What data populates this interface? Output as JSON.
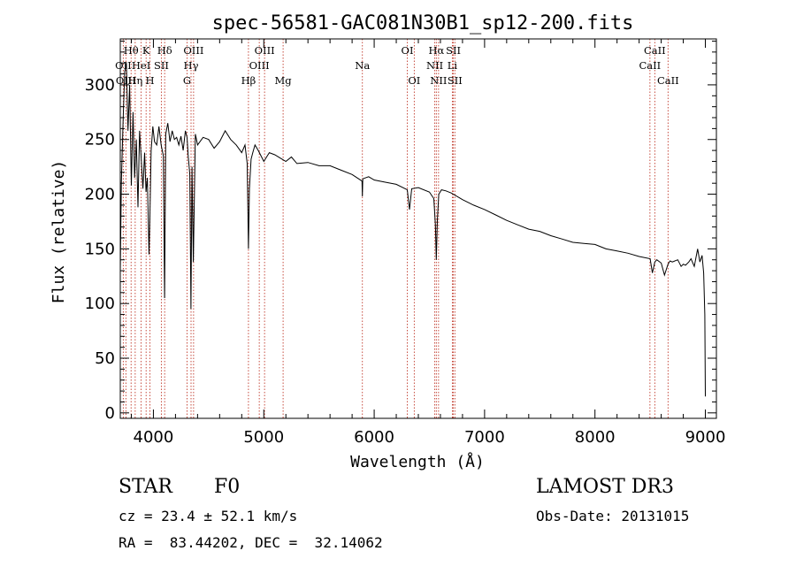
{
  "chart_data": {
    "type": "line",
    "title": "spec-56581-GAC081N30B1_sp12-200.fits",
    "xlabel": "Wavelength (Å)",
    "ylabel": "Flux (relative)",
    "xlim": [
      3700,
      9100
    ],
    "ylim": [
      -5,
      342
    ],
    "xticks": [
      4000,
      5000,
      6000,
      7000,
      8000,
      9000
    ],
    "yticks": [
      0,
      50,
      100,
      150,
      200,
      250,
      300
    ],
    "spectrum": {
      "name": "flux",
      "x": [
        3700,
        3710,
        3725,
        3740,
        3755,
        3770,
        3785,
        3800,
        3815,
        3830,
        3845,
        3860,
        3875,
        3890,
        3905,
        3920,
        3933,
        3945,
        3960,
        3968,
        3980,
        3995,
        4010,
        4030,
        4050,
        4070,
        4090,
        4101,
        4112,
        4130,
        4150,
        4170,
        4190,
        4210,
        4230,
        4250,
        4270,
        4290,
        4305,
        4315,
        4330,
        4340,
        4350,
        4362,
        4380,
        4400,
        4450,
        4500,
        4550,
        4600,
        4650,
        4700,
        4750,
        4800,
        4830,
        4850,
        4861,
        4870,
        4885,
        4900,
        4920,
        4950,
        5000,
        5050,
        5100,
        5150,
        5200,
        5250,
        5300,
        5400,
        5500,
        5600,
        5700,
        5800,
        5890,
        5893,
        5897,
        5950,
        6000,
        6100,
        6200,
        6300,
        6320,
        6340,
        6400,
        6500,
        6540,
        6555,
        6563,
        6572,
        6585,
        6610,
        6650,
        6700,
        6800,
        6900,
        7000,
        7100,
        7200,
        7300,
        7400,
        7500,
        7600,
        7700,
        7800,
        7900,
        8000,
        8050,
        8100,
        8200,
        8300,
        8400,
        8500,
        8520,
        8542,
        8560,
        8600,
        8630,
        8662,
        8680,
        8700,
        8750,
        8780,
        8800,
        8820,
        8850,
        8870,
        8900,
        8930,
        8950,
        8970,
        8985,
        8995,
        9000
      ],
      "y": [
        130,
        210,
        265,
        312,
        320,
        258,
        300,
        208,
        275,
        215,
        250,
        188,
        258,
        232,
        205,
        238,
        202,
        215,
        145,
        180,
        240,
        262,
        248,
        245,
        262,
        245,
        235,
        105,
        255,
        265,
        248,
        258,
        250,
        252,
        245,
        253,
        240,
        258,
        252,
        235,
        218,
        95,
        225,
        138,
        255,
        245,
        252,
        250,
        242,
        248,
        258,
        250,
        245,
        238,
        245,
        228,
        150,
        205,
        232,
        238,
        245,
        240,
        230,
        238,
        236,
        233,
        230,
        234,
        228,
        229,
        226,
        226,
        222,
        218,
        212,
        198,
        214,
        216,
        213,
        211,
        209,
        204,
        186,
        205,
        206,
        202,
        196,
        172,
        140,
        176,
        200,
        204,
        203,
        201,
        195,
        190,
        186,
        181,
        176,
        172,
        168,
        166,
        162,
        159,
        156,
        155,
        154,
        152,
        150,
        148,
        146,
        143,
        141,
        128,
        138,
        140,
        137,
        126,
        136,
        139,
        138,
        140,
        134,
        136,
        135,
        138,
        141,
        134,
        150,
        138,
        144,
        128,
        90,
        15
      ]
    },
    "lines_row1": [
      {
        "label": "Hθ",
        "x": 3798
      },
      {
        "label": "K",
        "x": 3934
      },
      {
        "label": "Hδ",
        "x": 4102
      },
      {
        "label": "OIII",
        "x": 4364
      },
      {
        "label": "OIII",
        "x": 5007
      },
      {
        "label": "OI",
        "x": 6300
      },
      {
        "label": "Hα",
        "x": 6563
      },
      {
        "label": "SII",
        "x": 6717
      },
      {
        "label": "CaII",
        "x": 8542
      }
    ],
    "lines_row2": [
      {
        "label": "OII",
        "x": 3727
      },
      {
        "label": "HeI",
        "x": 3889
      },
      {
        "label": "SII",
        "x": 4072
      },
      {
        "label": "Hγ",
        "x": 4341
      },
      {
        "label": "OIII",
        "x": 4959
      },
      {
        "label": "Na",
        "x": 5893
      },
      {
        "label": "NII",
        "x": 6549
      },
      {
        "label": "Li",
        "x": 6708
      },
      {
        "label": "CaII",
        "x": 8498
      }
    ],
    "lines_row3": [
      {
        "label": "OIII",
        "x": 3751
      },
      {
        "label": "Hη",
        "x": 3835
      },
      {
        "label": "H",
        "x": 3969
      },
      {
        "label": "G",
        "x": 4305
      },
      {
        "label": "Hβ",
        "x": 4861
      },
      {
        "label": "Mg",
        "x": 5175
      },
      {
        "label": "OI",
        "x": 6363
      },
      {
        "label": "NII",
        "x": 6583
      },
      {
        "label": "SII",
        "x": 6731
      },
      {
        "label": "CaII",
        "x": 8662
      }
    ]
  },
  "info": {
    "object_class": "STAR",
    "subclass": "F0",
    "survey": "LAMOST DR3",
    "cz": "cz = 23.4 ± 52.1 km/s",
    "obs_date": "Obs-Date: 20131015",
    "coords": "RA =  83.44202, DEC =  32.14062"
  }
}
